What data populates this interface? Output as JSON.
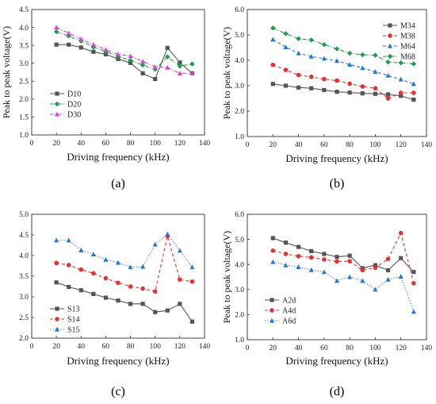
{
  "chart_data": [
    {
      "type": "line",
      "panel_label": "(a)",
      "xlabel": "Driving frequency (kHz)",
      "ylabel": "Peak to peak voltage(V)",
      "xlim": [
        0,
        140
      ],
      "ylim": [
        1.0,
        4.5
      ],
      "xticks": [
        0,
        20,
        40,
        60,
        80,
        100,
        120,
        140
      ],
      "yticks": [
        1.0,
        1.5,
        2.0,
        2.5,
        3.0,
        3.5,
        4.0,
        4.5
      ],
      "legend": "bottom-left",
      "x": [
        20,
        30,
        40,
        50,
        60,
        70,
        80,
        90,
        100,
        110,
        120,
        130
      ],
      "series": [
        {
          "name": "D10",
          "color": "#555555",
          "marker": "square",
          "dash": "solid",
          "values": [
            3.52,
            3.52,
            3.44,
            3.32,
            3.25,
            3.12,
            3.01,
            2.72,
            2.56,
            3.43,
            3.02,
            2.72
          ]
        },
        {
          "name": "D20",
          "color": "#1a9e4a",
          "marker": "diamond",
          "dash": "dashdot",
          "values": [
            3.88,
            3.76,
            3.62,
            3.45,
            3.33,
            3.19,
            3.08,
            2.95,
            2.83,
            3.18,
            2.92,
            2.98
          ]
        },
        {
          "name": "D30",
          "color": "#e040e0",
          "marker": "triangle-up",
          "dash": "dashdot",
          "values": [
            4.0,
            3.84,
            3.68,
            3.52,
            3.38,
            3.25,
            3.2,
            3.05,
            2.9,
            2.88,
            2.72,
            2.72
          ]
        }
      ]
    },
    {
      "type": "line",
      "panel_label": "(b)",
      "xlabel": "Driving frequency (kHz)",
      "ylabel": "Peak to peak voltage(V)",
      "xlim": [
        0,
        140
      ],
      "ylim": [
        1.0,
        6.0
      ],
      "xticks": [
        0,
        20,
        40,
        60,
        80,
        100,
        120,
        140
      ],
      "yticks": [
        1.0,
        2.0,
        3.0,
        4.0,
        5.0,
        6.0
      ],
      "legend": "top-right",
      "x": [
        20,
        30,
        40,
        50,
        60,
        70,
        80,
        90,
        100,
        110,
        120,
        130
      ],
      "series": [
        {
          "name": "M34",
          "color": "#555555",
          "marker": "square",
          "dash": "solid",
          "values": [
            3.07,
            3.0,
            2.93,
            2.9,
            2.83,
            2.76,
            2.73,
            2.7,
            2.68,
            2.66,
            2.6,
            2.45
          ]
        },
        {
          "name": "M38",
          "color": "#e83030",
          "marker": "circle",
          "dash": "dashed",
          "values": [
            3.82,
            3.62,
            3.42,
            3.35,
            3.26,
            3.2,
            3.08,
            2.97,
            2.9,
            2.5,
            2.72,
            2.72
          ]
        },
        {
          "name": "M64",
          "color": "#1e78dc",
          "marker": "triangle-up",
          "dash": "dashed",
          "values": [
            4.82,
            4.52,
            4.28,
            4.15,
            4.07,
            3.98,
            3.83,
            3.7,
            3.55,
            3.4,
            3.25,
            3.07
          ]
        },
        {
          "name": "M68",
          "color": "#1a9e4a",
          "marker": "diamond",
          "dash": "dashdot",
          "values": [
            5.27,
            5.05,
            4.85,
            4.8,
            4.62,
            4.45,
            4.28,
            4.22,
            4.2,
            3.93,
            3.9,
            3.86
          ]
        }
      ]
    },
    {
      "type": "line",
      "panel_label": "(c)",
      "xlabel": "Driving frequency (kHz)",
      "ylabel": "",
      "xlim": [
        0,
        140
      ],
      "ylim": [
        2.0,
        5.0
      ],
      "xticks": [
        0,
        20,
        40,
        60,
        80,
        100,
        120,
        140
      ],
      "yticks": [
        2.0,
        2.5,
        3.0,
        3.5,
        4.0,
        4.5,
        5.0
      ],
      "legend": "bottom-left",
      "x": [
        20,
        30,
        40,
        50,
        60,
        70,
        80,
        90,
        100,
        110,
        120,
        130
      ],
      "series": [
        {
          "name": "S13",
          "color": "#555555",
          "marker": "square",
          "dash": "solid",
          "values": [
            3.35,
            3.24,
            3.16,
            3.07,
            2.98,
            2.91,
            2.83,
            2.83,
            2.63,
            2.67,
            2.83,
            2.4
          ]
        },
        {
          "name": "S14",
          "color": "#e83030",
          "marker": "circle",
          "dash": "dashed",
          "values": [
            3.82,
            3.77,
            3.66,
            3.57,
            3.45,
            3.34,
            3.25,
            3.2,
            3.13,
            4.47,
            3.42,
            3.37
          ]
        },
        {
          "name": "S15",
          "color": "#1e78dc",
          "marker": "triangle-up",
          "dash": "dotted",
          "values": [
            4.37,
            4.37,
            4.13,
            4.03,
            3.9,
            3.83,
            3.72,
            3.73,
            4.27,
            4.52,
            4.12,
            3.72
          ]
        }
      ]
    },
    {
      "type": "line",
      "panel_label": "(d)",
      "xlabel": "Driving frequency (kHz)",
      "ylabel": "Peak to peak voltage(V)",
      "xlim": [
        0,
        140
      ],
      "ylim": [
        1.0,
        6.0
      ],
      "xticks": [
        0,
        20,
        40,
        60,
        80,
        100,
        120,
        140
      ],
      "yticks": [
        1.0,
        2.0,
        3.0,
        4.0,
        5.0,
        6.0
      ],
      "legend": "bottom-left",
      "x": [
        20,
        30,
        40,
        50,
        60,
        70,
        80,
        90,
        100,
        110,
        120,
        130
      ],
      "series": [
        {
          "name": "A2d",
          "color": "#555555",
          "marker": "square",
          "dash": "solid",
          "values": [
            5.05,
            4.87,
            4.7,
            4.53,
            4.42,
            4.3,
            4.35,
            3.85,
            3.97,
            3.77,
            4.25,
            3.7
          ]
        },
        {
          "name": "A4d",
          "color": "#e83030",
          "marker": "circle",
          "dash": "dashed",
          "values": [
            4.55,
            4.42,
            4.33,
            4.28,
            4.2,
            4.12,
            4.13,
            3.77,
            3.87,
            4.22,
            5.25,
            3.25
          ]
        },
        {
          "name": "A6d",
          "color": "#1e78dc",
          "marker": "triangle-up",
          "dash": "dotted",
          "values": [
            4.1,
            3.97,
            3.9,
            3.78,
            3.7,
            3.35,
            3.5,
            3.35,
            3.0,
            3.4,
            3.52,
            2.12
          ]
        }
      ]
    }
  ]
}
